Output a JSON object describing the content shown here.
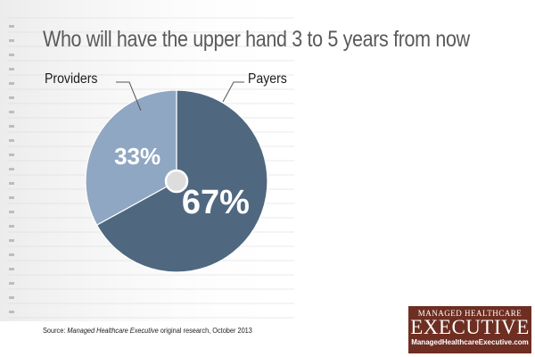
{
  "chart_data": {
    "type": "pie",
    "title": "Who will have the upper hand 3 to 5 years from now",
    "slices": [
      {
        "label": "Payers",
        "value": 67,
        "display": "67%",
        "color": "#4f6880"
      },
      {
        "label": "Providers",
        "value": 33,
        "display": "33%",
        "color": "#8fa7c2"
      }
    ],
    "start_angle_deg": 0,
    "direction": "clockwise",
    "center_dot_color": "#dddddd",
    "label_text_color": "#ffffff"
  },
  "source": {
    "prefix": "Source: ",
    "publication": "Managed Healthcare Executive",
    "suffix": " original research, October 2013"
  },
  "brand": {
    "top": "MANAGED HEALTHCARE",
    "main": "EXECUTIVE",
    "url": "ManagedHealthcareExecutive.com",
    "color": "#6e2e22"
  }
}
